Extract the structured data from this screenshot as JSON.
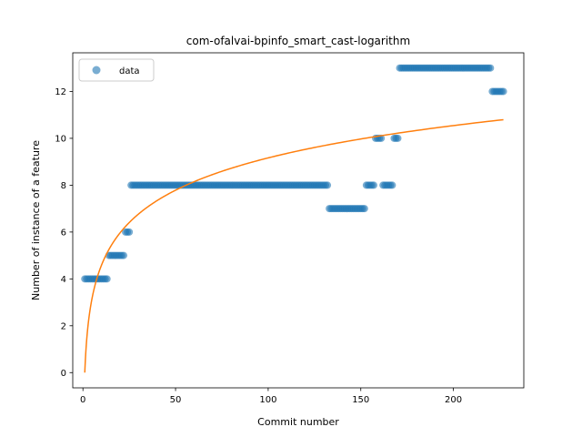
{
  "chart_data": {
    "type": "scatter",
    "title": "com-ofalvai-bpinfo_smart_cast-logarithm",
    "xlabel": "Commit number",
    "ylabel": "Number of instance of a feature",
    "xlim": [
      -5.5,
      238
    ],
    "ylim": [
      -0.65,
      13.65
    ],
    "xticks": [
      0,
      50,
      100,
      150,
      200
    ],
    "yticks": [
      0,
      2,
      4,
      6,
      8,
      10,
      12
    ],
    "legend": {
      "position": "top-left",
      "entries": [
        "data"
      ]
    },
    "colors": {
      "data": "#1f77b4",
      "fit": "#ff7f0e"
    },
    "series": [
      {
        "name": "data",
        "kind": "scatter",
        "segments": [
          {
            "x_start": 1,
            "x_end": 13,
            "y": 4
          },
          {
            "x_start": 14,
            "x_end": 22,
            "y": 5
          },
          {
            "x_start": 23,
            "x_end": 25,
            "y": 6
          },
          {
            "x_start": 26,
            "x_end": 132,
            "y": 8
          },
          {
            "x_start": 133,
            "x_end": 152,
            "y": 7
          },
          {
            "x_start": 153,
            "x_end": 157,
            "y": 8
          },
          {
            "x_start": 158,
            "x_end": 161,
            "y": 10
          },
          {
            "x_start": 162,
            "x_end": 167,
            "y": 8
          },
          {
            "x_start": 168,
            "x_end": 170,
            "y": 10
          },
          {
            "x_start": 171,
            "x_end": 220,
            "y": 13
          },
          {
            "x_start": 221,
            "x_end": 227,
            "y": 12
          }
        ]
      },
      {
        "kind": "line",
        "formula": "y = a + b*ln(x)",
        "a": 0,
        "b": 1.99,
        "x_range": [
          1,
          227
        ]
      }
    ]
  }
}
